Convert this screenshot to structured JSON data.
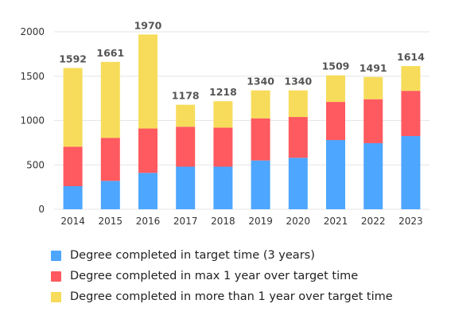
{
  "chart_data": {
    "type": "bar",
    "stacked": true,
    "categories": [
      "2014",
      "2015",
      "2016",
      "2017",
      "2018",
      "2019",
      "2020",
      "2021",
      "2022",
      "2023"
    ],
    "series": [
      {
        "name": "Degree completed in target time (3 years)",
        "color": "#4da6ff",
        "values": [
          260,
          320,
          410,
          480,
          480,
          550,
          580,
          780,
          745,
          825
        ]
      },
      {
        "name": "Degree completed in max 1 year over target time",
        "color": "#ff5a5f",
        "values": [
          445,
          485,
          500,
          450,
          440,
          475,
          460,
          430,
          495,
          510
        ]
      },
      {
        "name": "Degree completed in more than 1 year over target time",
        "color": "#f7dc5b",
        "values": [
          887,
          856,
          1060,
          248,
          298,
          315,
          300,
          299,
          251,
          279
        ]
      }
    ],
    "totals": [
      "1592",
      "1661",
      "1970",
      "1178",
      "1218",
      "1340",
      "1340",
      "1509",
      "1491",
      "1614"
    ],
    "yticks": [
      "0",
      "500",
      "1000",
      "1500",
      "2000"
    ],
    "ylim": [
      0,
      2000
    ],
    "grid": true,
    "legend_position": "bottom",
    "title": "",
    "xlabel": "",
    "ylabel": ""
  }
}
